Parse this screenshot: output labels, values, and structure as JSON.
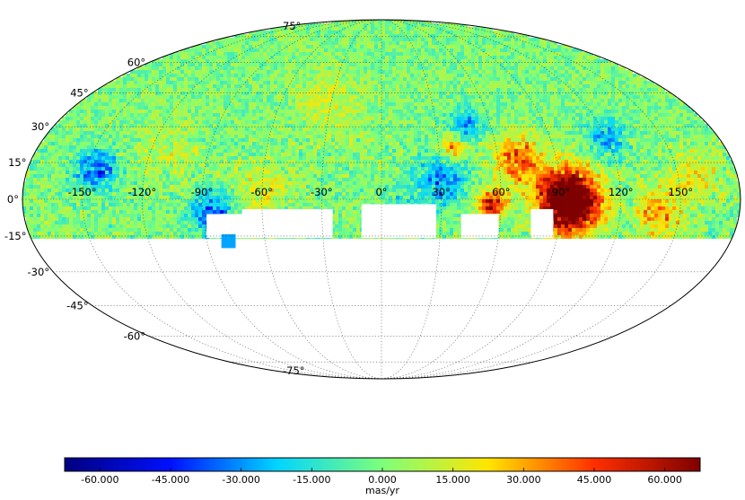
{
  "map": {
    "projection": "mollweide",
    "value_range": [
      -67.5,
      67.5
    ],
    "coverage_southern_limit_deg": -15,
    "colormap": [
      "#00007f",
      "#0010ff",
      "#00d4ff",
      "#7dff7a",
      "#ffe500",
      "#ff2f00",
      "#7f0000"
    ],
    "features": [
      {
        "lon": 92,
        "lat": 1,
        "value": 62,
        "radius": 11
      },
      {
        "lon": 96,
        "lat": -3,
        "value": 55,
        "radius": 9
      },
      {
        "lon": 55,
        "lat": -2,
        "value": 55,
        "radius": 5
      },
      {
        "lon": 70,
        "lat": 16,
        "value": 42,
        "radius": 8
      },
      {
        "lon": 38,
        "lat": 22,
        "value": 38,
        "radius": 5
      },
      {
        "lon": -145,
        "lat": 12,
        "value": -35,
        "radius": 7
      },
      {
        "lon": -85,
        "lat": -6,
        "value": -38,
        "radius": 7
      },
      {
        "lon": 30,
        "lat": 8,
        "value": -30,
        "radius": 9
      },
      {
        "lon": 45,
        "lat": 30,
        "value": -32,
        "radius": 6
      },
      {
        "lon": 120,
        "lat": 25,
        "value": -25,
        "radius": 7
      },
      {
        "lon": 140,
        "lat": -5,
        "value": 30,
        "radius": 9
      },
      {
        "lon": -60,
        "lat": 5,
        "value": 15,
        "radius": 10
      },
      {
        "lon": 160,
        "lat": 10,
        "value": 20,
        "radius": 8
      },
      {
        "lon": -30,
        "lat": 40,
        "value": 12,
        "radius": 12
      },
      {
        "lon": 10,
        "lat": -5,
        "value": -20,
        "radius": 6
      },
      {
        "lon": -110,
        "lat": 20,
        "value": 12,
        "radius": 10
      }
    ]
  },
  "meridian_labels": [
    {
      "text": "-150°",
      "lon": -150
    },
    {
      "text": "-120°",
      "lon": -120
    },
    {
      "text": "-90°",
      "lon": -90
    },
    {
      "text": "-60°",
      "lon": -60
    },
    {
      "text": "-30°",
      "lon": -30
    },
    {
      "text": "0°",
      "lon": 0
    },
    {
      "text": "30°",
      "lon": 30
    },
    {
      "text": "60°",
      "lon": 60
    },
    {
      "text": "90°",
      "lon": 90
    },
    {
      "text": "120°",
      "lon": 120
    },
    {
      "text": "150°",
      "lon": 150
    }
  ],
  "parallel_labels": [
    {
      "text": "75°",
      "lat": 75
    },
    {
      "text": "60°",
      "lat": 60
    },
    {
      "text": "45°",
      "lat": 45
    },
    {
      "text": "30°",
      "lat": 30
    },
    {
      "text": "15°",
      "lat": 15
    },
    {
      "text": "0°",
      "lat": 0
    },
    {
      "text": "-15°",
      "lat": -15
    },
    {
      "text": "-30°",
      "lat": -30
    },
    {
      "text": "-45°",
      "lat": -45
    },
    {
      "text": "-60°",
      "lat": -60
    },
    {
      "text": "-75°",
      "lat": -75
    }
  ],
  "colorbar": {
    "min": -67.5,
    "max": 67.5,
    "ticks": [
      {
        "value": -60,
        "label": "-60.000"
      },
      {
        "value": -45,
        "label": "-45.000"
      },
      {
        "value": -30,
        "label": "-30.000"
      },
      {
        "value": -15,
        "label": "-15.000"
      },
      {
        "value": 0,
        "label": "0.000"
      },
      {
        "value": 15,
        "label": "15.000"
      },
      {
        "value": 30,
        "label": "30.000"
      },
      {
        "value": 45,
        "label": "45.000"
      },
      {
        "value": 60,
        "label": "60.000"
      }
    ],
    "unit_label": "mas/yr"
  }
}
